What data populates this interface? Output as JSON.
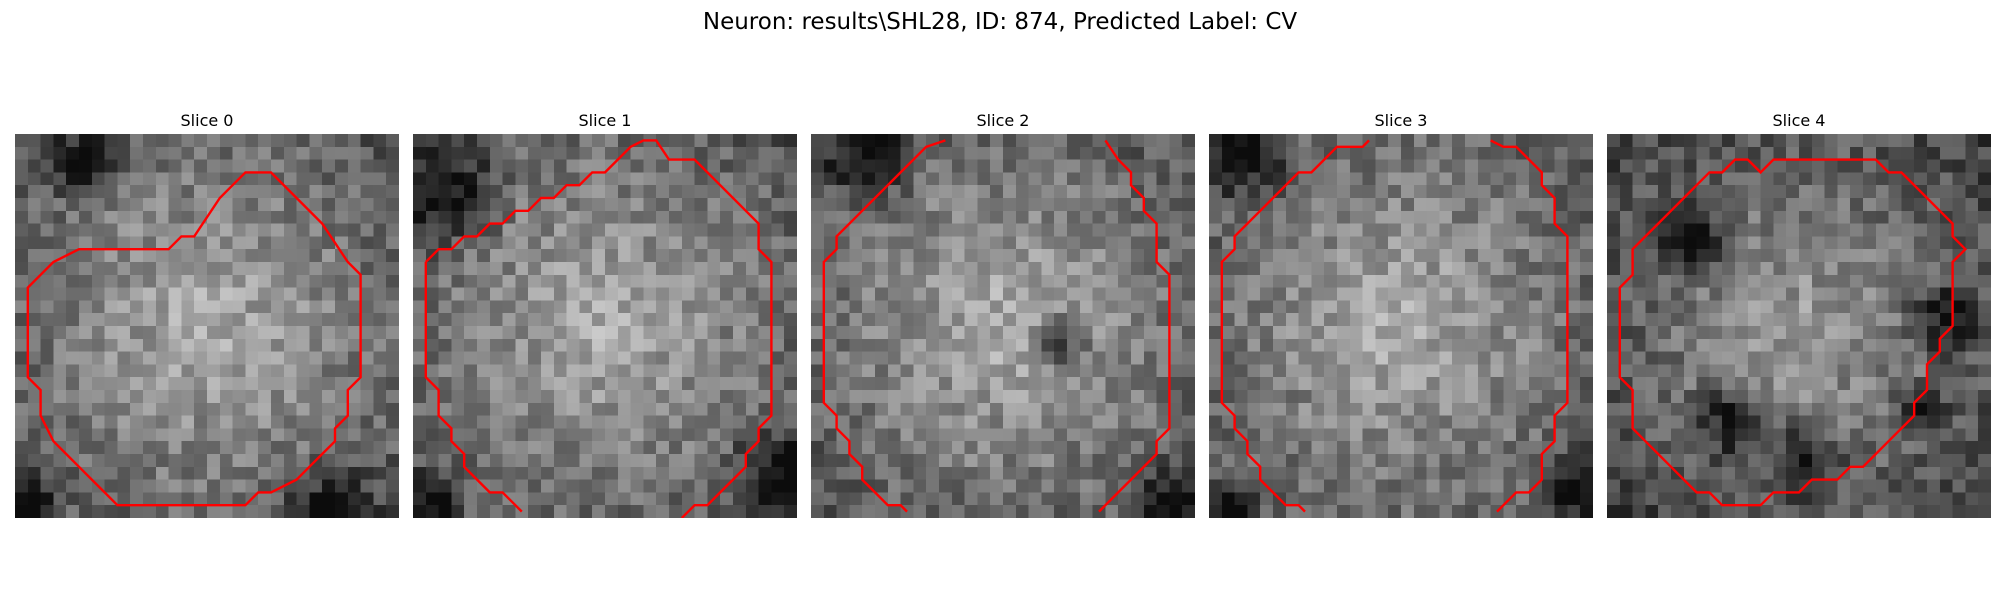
{
  "figure": {
    "title": "Neuron: results\\SHL28, ID: 874, Predicted Label: CV"
  },
  "panels": [
    {
      "title": "Slice 0",
      "contour_color": "#ff0000"
    },
    {
      "title": "Slice 1",
      "contour_color": "#ff0000"
    },
    {
      "title": "Slice 2",
      "contour_color": "#ff0000"
    },
    {
      "title": "Slice 3",
      "contour_color": "#ff0000"
    },
    {
      "title": "Slice 4",
      "contour_color": "#ff0000"
    }
  ],
  "colormap": "gray",
  "contour_color": "#ff0000"
}
